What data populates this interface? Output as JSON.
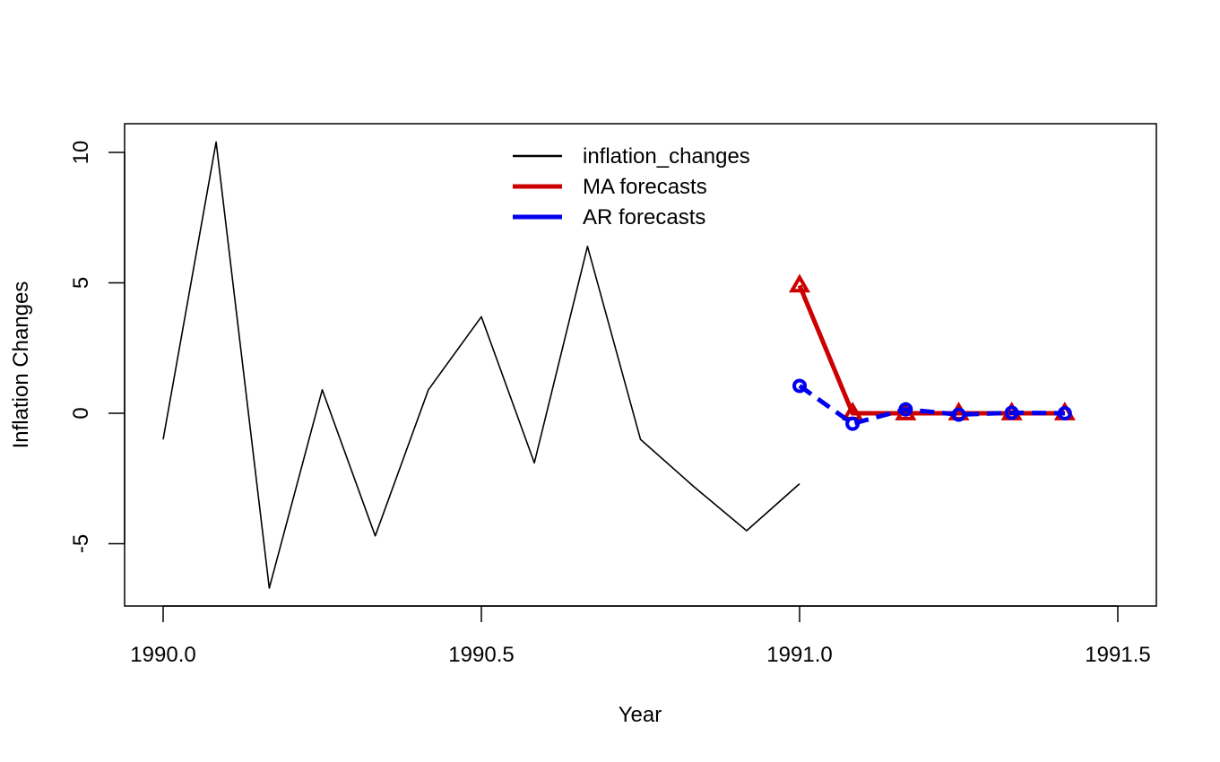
{
  "chart_data": {
    "type": "line",
    "xlabel": "Year",
    "ylabel": "Inflation Changes",
    "xlim": [
      1989.94,
      1991.58
    ],
    "ylim": [
      -7.4,
      11.5
    ],
    "xticks": [
      {
        "value": 1990.0,
        "label": "1990.0"
      },
      {
        "value": 1990.5,
        "label": "1990.5"
      },
      {
        "value": 1991.0,
        "label": "1991.0"
      },
      {
        "value": 1991.5,
        "label": "1991.5"
      }
    ],
    "yticks": [
      {
        "value": -5,
        "label": "-5"
      },
      {
        "value": 0,
        "label": "0"
      },
      {
        "value": 5,
        "label": "5"
      },
      {
        "value": 10,
        "label": "10"
      }
    ],
    "legend_position": "top-center",
    "series": [
      {
        "name": "inflation_changes",
        "color": "#000000",
        "style": "solid",
        "marker": "none",
        "x": [
          1990.0,
          1990.0833,
          1990.1667,
          1990.25,
          1990.3333,
          1990.4167,
          1990.5,
          1990.5833,
          1990.6667,
          1990.75,
          1990.8333,
          1990.9167,
          1991.0
        ],
        "y": [
          -1.0,
          10.4,
          -6.7,
          0.9,
          -4.7,
          0.9,
          3.7,
          -1.9,
          6.4,
          -1.0,
          -2.8,
          -4.5,
          -2.7
        ]
      },
      {
        "name": "MA forecasts",
        "color": "#cc0000",
        "style": "solid",
        "marker": "triangle",
        "x": [
          1991.0,
          1991.0833,
          1991.1667,
          1991.25,
          1991.3333,
          1991.4167
        ],
        "y": [
          4.9,
          0.0,
          0.0,
          0.0,
          0.0,
          0.0
        ]
      },
      {
        "name": "AR forecasts",
        "color": "#0000ee",
        "style": "dashed",
        "marker": "circle",
        "x": [
          1991.0,
          1991.0833,
          1991.1667,
          1991.25,
          1991.3333,
          1991.4167
        ],
        "y": [
          1.05,
          -0.4,
          0.15,
          -0.05,
          0.02,
          0.0
        ]
      }
    ]
  }
}
